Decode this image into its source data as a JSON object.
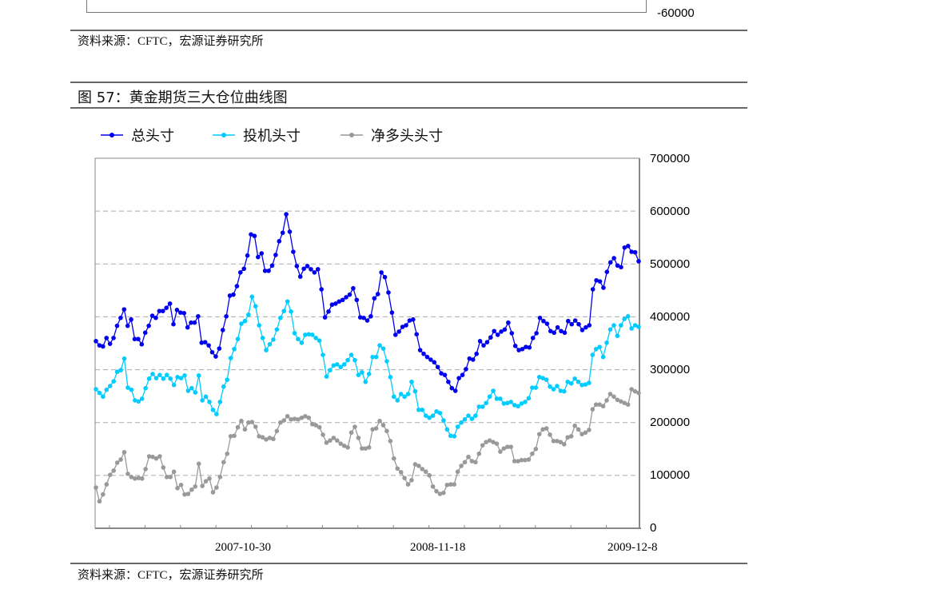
{
  "prev_chart": {
    "y_tick_bottom": "-60000",
    "source": "资料来源：CFTC，宏源证券研究所"
  },
  "figure_title": "图 57：黄金期货三大仓位曲线图",
  "source": "资料来源：CFTC，宏源证券研究所",
  "chart_data": {
    "type": "line",
    "title": "黄金期货三大仓位曲线图",
    "xlabel": "",
    "ylabel": "",
    "ylim": [
      0,
      700000
    ],
    "y_ticks": [
      "700000",
      "600000",
      "500000",
      "400000",
      "300000",
      "200000",
      "100000",
      "0"
    ],
    "y_tick_values": [
      700000,
      600000,
      500000,
      400000,
      300000,
      200000,
      100000,
      0
    ],
    "x_tick_labels": [
      "2007-10-30",
      "2008-11-18",
      "2009-12-8"
    ],
    "grid": true,
    "legend_position": "top",
    "series": [
      {
        "name": "总头寸",
        "color": "#0000ee",
        "values": [
          354000,
          346000,
          344000,
          360000,
          349000,
          360000,
          383000,
          398000,
          414000,
          383000,
          395000,
          358000,
          358000,
          348000,
          370000,
          383000,
          402000,
          398000,
          411000,
          411000,
          417000,
          425000,
          386000,
          413000,
          408000,
          407000,
          380000,
          389000,
          389000,
          401000,
          351000,
          352000,
          346000,
          333000,
          325000,
          340000,
          375000,
          401000,
          440000,
          442000,
          458000,
          484000,
          491000,
          516000,
          556000,
          553000,
          513000,
          520000,
          487000,
          487000,
          497000,
          517000,
          543000,
          559000,
          594000,
          561000,
          523000,
          496000,
          476000,
          491000,
          496000,
          490000,
          484000,
          490000,
          452000,
          399000,
          410000,
          423000,
          425000,
          429000,
          432000,
          437000,
          442000,
          454000,
          432000,
          399000,
          398000,
          393000,
          401000,
          435000,
          443000,
          484000,
          475000,
          446000,
          408000,
          366000,
          372000,
          381000,
          384000,
          393000,
          395000,
          367000,
          337000,
          330000,
          324000,
          319000,
          314000,
          305000,
          293000,
          290000,
          277000,
          265000,
          260000,
          284000,
          290000,
          301000,
          321000,
          319000,
          330000,
          354000,
          346000,
          352000,
          361000,
          373000,
          366000,
          372000,
          376000,
          389000,
          369000,
          345000,
          337000,
          339000,
          343000,
          342000,
          360000,
          369000,
          398000,
          392000,
          387000,
          373000,
          370000,
          380000,
          373000,
          370000,
          392000,
          386000,
          393000,
          386000,
          375000,
          380000,
          384000,
          452000,
          469000,
          467000,
          455000,
          485000,
          503000,
          511000,
          497000,
          494000,
          531000,
          534000,
          523000,
          522000,
          505000
        ]
      },
      {
        "name": "投机头寸",
        "color": "#00ccff",
        "values": [
          263000,
          256000,
          249000,
          262000,
          269000,
          278000,
          296000,
          299000,
          321000,
          266000,
          262000,
          242000,
          240000,
          245000,
          265000,
          283000,
          292000,
          284000,
          290000,
          283000,
          290000,
          283000,
          271000,
          286000,
          284000,
          289000,
          260000,
          265000,
          257000,
          289000,
          242000,
          249000,
          239000,
          224000,
          216000,
          239000,
          268000,
          281000,
          322000,
          339000,
          358000,
          387000,
          392000,
          404000,
          438000,
          420000,
          384000,
          360000,
          337000,
          348000,
          357000,
          376000,
          398000,
          411000,
          429000,
          410000,
          369000,
          358000,
          351000,
          366000,
          367000,
          366000,
          360000,
          355000,
          328000,
          287000,
          299000,
          308000,
          310000,
          305000,
          310000,
          318000,
          328000,
          318000,
          290000,
          295000,
          277000,
          292000,
          324000,
          324000,
          346000,
          340000,
          316000,
          286000,
          249000,
          242000,
          254000,
          249000,
          254000,
          277000,
          259000,
          224000,
          224000,
          213000,
          209000,
          213000,
          221000,
          218000,
          204000,
          187000,
          175000,
          174000,
          192000,
          200000,
          206000,
          213000,
          207000,
          213000,
          230000,
          230000,
          237000,
          249000,
          260000,
          245000,
          245000,
          236000,
          237000,
          239000,
          233000,
          231000,
          236000,
          239000,
          246000,
          266000,
          266000,
          286000,
          284000,
          281000,
          268000,
          263000,
          269000,
          260000,
          259000,
          277000,
          274000,
          283000,
          277000,
          271000,
          272000,
          275000,
          328000,
          339000,
          343000,
          324000,
          351000,
          376000,
          384000,
          364000,
          384000,
          396000,
          401000,
          378000,
          384000,
          381000
        ]
      },
      {
        "name": "净多头头寸",
        "color": "#999999",
        "values": [
          77000,
          51000,
          64000,
          83000,
          101000,
          109000,
          124000,
          130000,
          144000,
          103000,
          97000,
          94000,
          95000,
          94000,
          112000,
          136000,
          135000,
          132000,
          136000,
          115000,
          97000,
          97000,
          107000,
          76000,
          82000,
          64000,
          65000,
          73000,
          79000,
          122000,
          80000,
          89000,
          94000,
          68000,
          77000,
          97000,
          125000,
          141000,
          174000,
          175000,
          191000,
          203000,
          187000,
          200000,
          201000,
          192000,
          174000,
          172000,
          168000,
          171000,
          169000,
          184000,
          200000,
          204000,
          212000,
          206000,
          207000,
          206000,
          209000,
          212000,
          209000,
          197000,
          195000,
          191000,
          177000,
          162000,
          166000,
          171000,
          166000,
          160000,
          156000,
          153000,
          181000,
          192000,
          171000,
          151000,
          151000,
          153000,
          187000,
          189000,
          203000,
          195000,
          184000,
          165000,
          132000,
          113000,
          106000,
          95000,
          83000,
          91000,
          121000,
          118000,
          112000,
          107000,
          100000,
          79000,
          70000,
          65000,
          67000,
          82000,
          83000,
          83000,
          107000,
          118000,
          125000,
          135000,
          127000,
          125000,
          141000,
          157000,
          163000,
          166000,
          163000,
          160000,
          145000,
          151000,
          154000,
          154000,
          127000,
          127000,
          129000,
          129000,
          130000,
          141000,
          150000,
          178000,
          187000,
          189000,
          177000,
          165000,
          165000,
          163000,
          159000,
          172000,
          174000,
          194000,
          187000,
          178000,
          181000,
          186000,
          225000,
          234000,
          234000,
          231000,
          242000,
          254000,
          249000,
          243000,
          240000,
          237000,
          234000,
          263000,
          259000,
          256000
        ]
      }
    ]
  }
}
